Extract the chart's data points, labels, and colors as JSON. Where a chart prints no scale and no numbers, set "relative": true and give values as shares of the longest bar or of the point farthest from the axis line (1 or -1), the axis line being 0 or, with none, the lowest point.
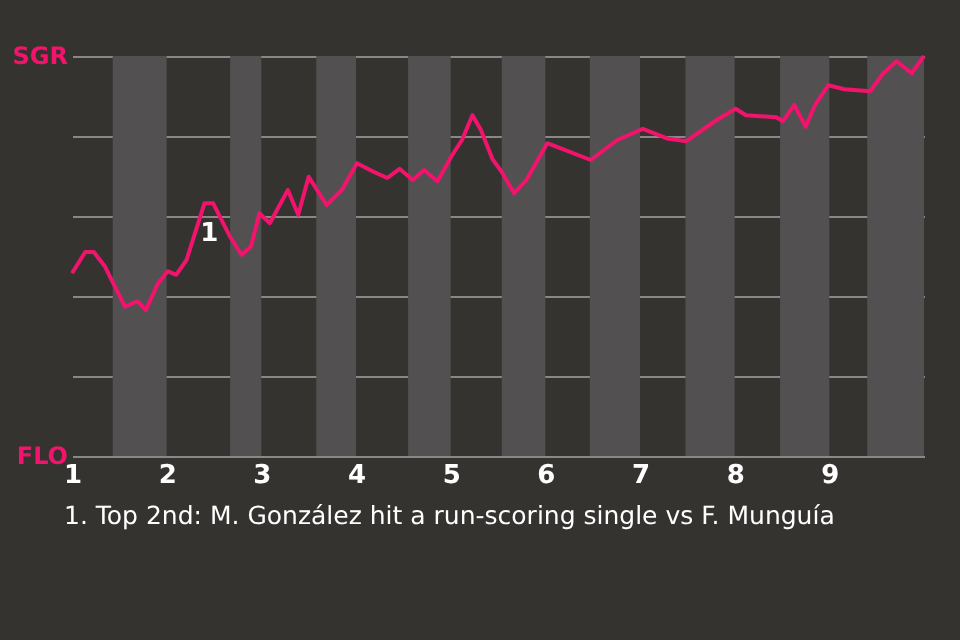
{
  "chart_data": {
    "type": "line",
    "relative": true,
    "x": [
      1,
      1.14,
      1.23,
      1.35,
      1.56,
      1.69,
      1.78,
      1.91,
      2.01,
      2.1,
      2.21,
      2.4,
      2.49,
      2.67,
      2.79,
      2.89,
      2.98,
      3.09,
      3.28,
      3.39,
      3.5,
      3.69,
      3.85,
      4.01,
      4.19,
      4.33,
      4.46,
      4.6,
      4.72,
      4.86,
      5.01,
      5.12,
      5.23,
      5.32,
      5.44,
      5.54,
      5.67,
      5.8,
      6.02,
      6.48,
      6.76,
      7.03,
      7.3,
      7.49,
      7.81,
      8.01,
      8.12,
      8.44,
      8.51,
      8.63,
      8.75,
      8.85,
      8.99,
      9.16,
      9.43,
      9.57,
      9.71,
      9.87,
      10
    ],
    "series": [
      {
        "color": "#f2136c",
        "values": [
          0.457,
          0.51,
          0.51,
          0.473,
          0.373,
          0.387,
          0.365,
          0.432,
          0.462,
          0.453,
          0.49,
          0.632,
          0.632,
          0.548,
          0.503,
          0.523,
          0.607,
          0.582,
          0.665,
          0.603,
          0.698,
          0.627,
          0.665,
          0.732,
          0.71,
          0.695,
          0.718,
          0.69,
          0.715,
          0.687,
          0.75,
          0.79,
          0.852,
          0.815,
          0.743,
          0.71,
          0.657,
          0.69,
          0.782,
          0.74,
          0.79,
          0.818,
          0.793,
          0.787,
          0.84,
          0.868,
          0.852,
          0.847,
          0.837,
          0.878,
          0.823,
          0.878,
          0.927,
          0.917,
          0.912,
          0.957,
          0.987,
          0.957,
          1
        ]
      }
    ],
    "xlim": [
      1,
      10
    ],
    "xticks": [
      1,
      2,
      3,
      4,
      5,
      6,
      7,
      8,
      9
    ],
    "grid": "y",
    "bands": [
      {
        "axis": "x",
        "from": 1.43,
        "to": 2,
        "label": null,
        "color": "#525050"
      },
      {
        "axis": "x",
        "from": 2.67,
        "to": 3,
        "label": null,
        "color": "#525050"
      },
      {
        "axis": "x",
        "from": 3.58,
        "to": 4,
        "label": null,
        "color": "#525050"
      },
      {
        "axis": "x",
        "from": 4.55,
        "to": 5,
        "label": null,
        "color": "#525050"
      },
      {
        "axis": "x",
        "from": 5.54,
        "to": 6,
        "label": null,
        "color": "#525050"
      },
      {
        "axis": "x",
        "from": 6.47,
        "to": 7,
        "label": null,
        "color": "#525050"
      },
      {
        "axis": "x",
        "from": 7.48,
        "to": 8,
        "label": null,
        "color": "#525050"
      },
      {
        "axis": "x",
        "from": 8.48,
        "to": 9,
        "label": null,
        "color": "#525050"
      },
      {
        "axis": "x",
        "from": 9.4,
        "to": 10,
        "label": null,
        "color": "#525050"
      }
    ],
    "annotations": [
      "SGR",
      "FLO",
      {
        "text": "1",
        "x": 2.45,
        "y": 0.632
      },
      "1. Top 2nd: M. González hit a run-scoring single vs F. Munguía"
    ],
    "line_style": "solid"
  }
}
